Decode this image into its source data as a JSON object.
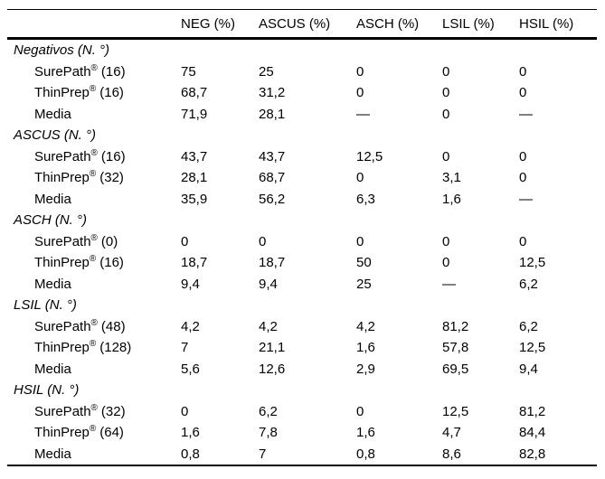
{
  "table": {
    "column_headers": [
      "NEG (%)",
      "ASCUS (%)",
      "ASCH (%)",
      "LSIL (%)",
      "HSIL (%)"
    ],
    "sections": [
      {
        "header": "Negativos (N. °)",
        "rows": [
          {
            "name": "SurePath",
            "sup": "®",
            "count": "(16)",
            "values": [
              "75",
              "25",
              "0",
              "0",
              "0"
            ]
          },
          {
            "name": "ThinPrep",
            "sup": "®",
            "count": "(16)",
            "values": [
              "68,7",
              "31,2",
              "0",
              "0",
              "0"
            ]
          },
          {
            "name": "Media",
            "values": [
              "71,9",
              "28,1",
              "—",
              "0",
              "—"
            ]
          }
        ]
      },
      {
        "header": "ASCUS (N. °)",
        "rows": [
          {
            "name": "SurePath",
            "sup": "®",
            "count": "(16)",
            "values": [
              "43,7",
              "43,7",
              "12,5",
              "0",
              "0"
            ]
          },
          {
            "name": "ThinPrep",
            "sup": "®",
            "count": "(32)",
            "values": [
              "28,1",
              "68,7",
              "0",
              "3,1",
              "0"
            ]
          },
          {
            "name": "Media",
            "values": [
              "35,9",
              "56,2",
              "6,3",
              "1,6",
              "—"
            ]
          }
        ]
      },
      {
        "header": "ASCH (N. °)",
        "rows": [
          {
            "name": "SurePath",
            "sup": "®",
            "count": "(0)",
            "values": [
              "0",
              "0",
              "0",
              "0",
              "0"
            ]
          },
          {
            "name": "ThinPrep",
            "sup": "®",
            "count": "(16)",
            "values": [
              "18,7",
              "18,7",
              "50",
              "0",
              "12,5"
            ]
          },
          {
            "name": "Media",
            "values": [
              "9,4",
              "9,4",
              "25",
              "—",
              "6,2"
            ]
          }
        ]
      },
      {
        "header": "LSIL (N. °)",
        "rows": [
          {
            "name": "SurePath",
            "sup": "®",
            "count": "(48)",
            "values": [
              "4,2",
              "4,2",
              "4,2",
              "81,2",
              "6,2"
            ]
          },
          {
            "name": "ThinPrep",
            "sup": "®",
            "count": "(128)",
            "values": [
              "7",
              "21,1",
              "1,6",
              "57,8",
              "12,5"
            ]
          },
          {
            "name": "Media",
            "values": [
              "5,6",
              "12,6",
              "2,9",
              "69,5",
              "9,4"
            ]
          }
        ]
      },
      {
        "header": "HSIL (N. °)",
        "rows": [
          {
            "name": "SurePath",
            "sup": "®",
            "count": "(32)",
            "values": [
              "0",
              "6,2",
              "0",
              "12,5",
              "81,2"
            ]
          },
          {
            "name": "ThinPrep",
            "sup": "®",
            "count": "(64)",
            "values": [
              "1,6",
              "7,8",
              "1,6",
              "4,7",
              "84,4"
            ]
          },
          {
            "name": "Media",
            "values": [
              "0,8",
              "7",
              "0,8",
              "8,6",
              "82,8"
            ]
          }
        ]
      }
    ]
  }
}
